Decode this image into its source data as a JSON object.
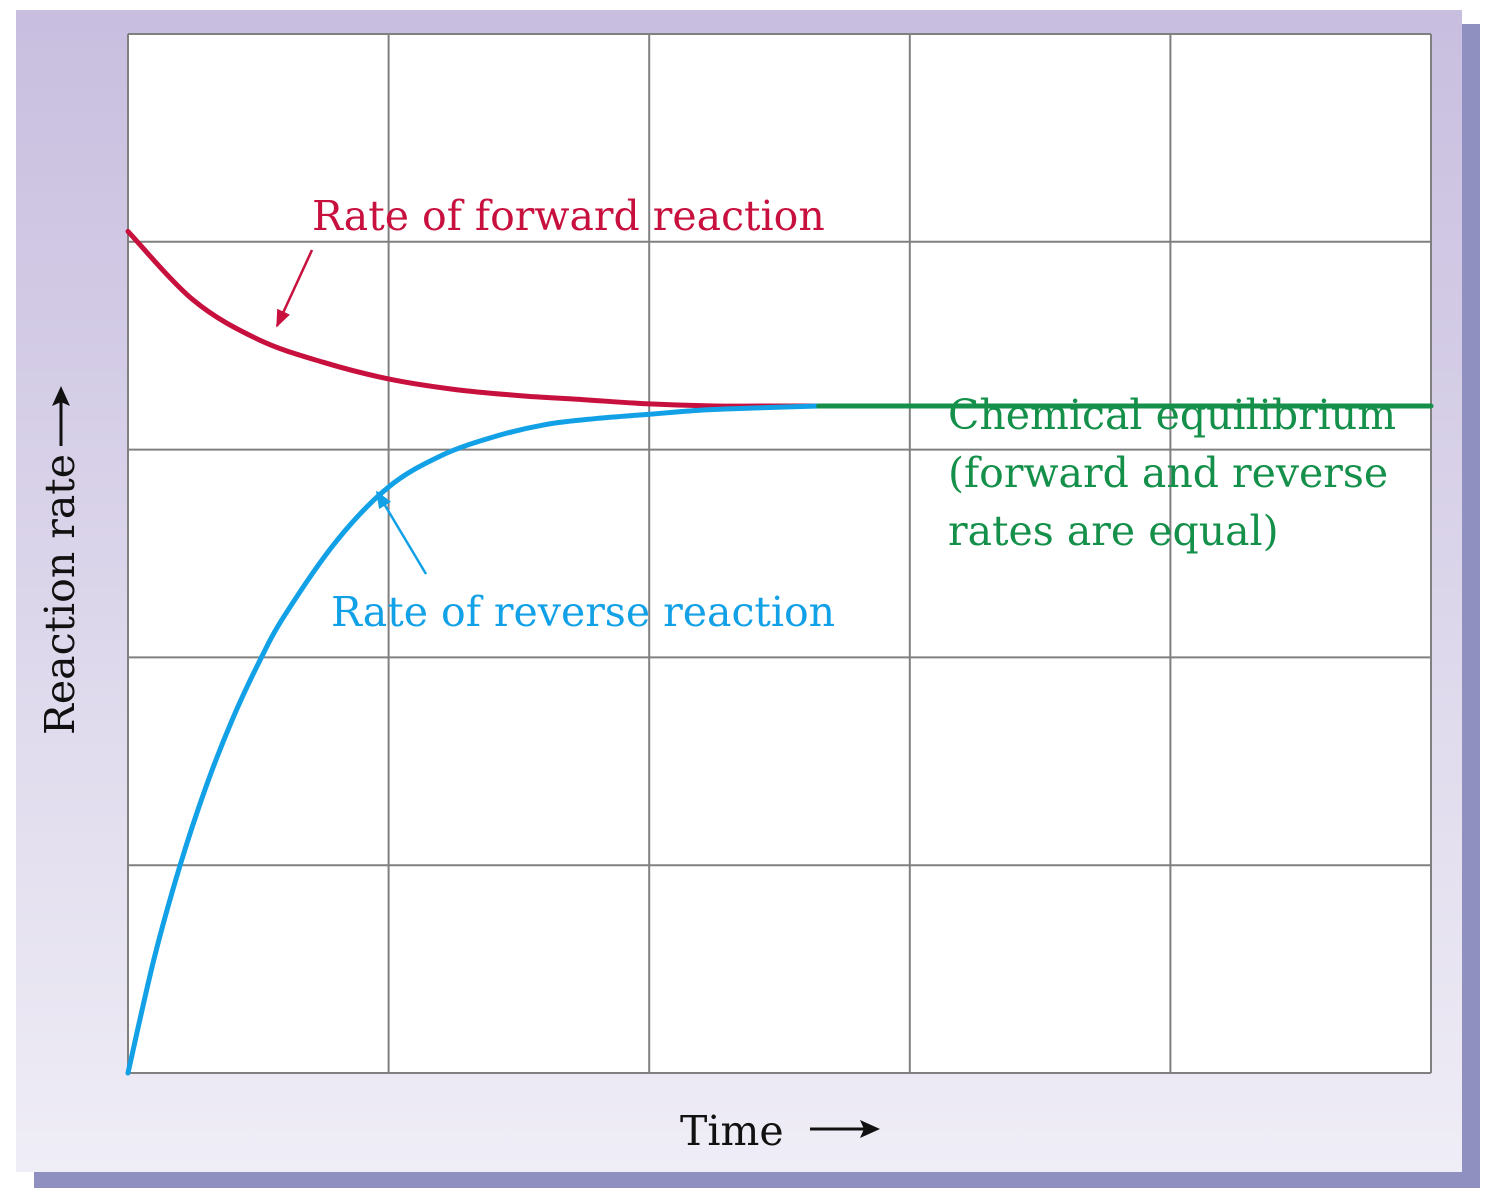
{
  "chart_data": {
    "type": "line",
    "title": "",
    "xlabel": "Time",
    "ylabel": "Reaction rate",
    "xlim": [
      0,
      5
    ],
    "ylim": [
      0,
      5
    ],
    "grid": true,
    "series": [
      {
        "name": "Rate of forward reaction",
        "color": "#c8103e",
        "x": [
          0,
          0.25,
          0.5,
          0.75,
          1.0,
          1.25,
          1.5,
          1.75,
          2.0,
          2.25,
          2.5,
          2.65
        ],
        "y": [
          4.05,
          3.72,
          3.53,
          3.42,
          3.34,
          3.29,
          3.26,
          3.24,
          3.22,
          3.21,
          3.21,
          3.21
        ]
      },
      {
        "name": "Rate of reverse reaction",
        "color": "#12a1e6",
        "x": [
          0,
          0.1,
          0.2,
          0.3,
          0.4,
          0.5,
          0.6,
          0.8,
          1.0,
          1.2,
          1.4,
          1.6,
          1.8,
          2.0,
          2.2,
          2.4,
          2.65
        ],
        "y": [
          0,
          0.55,
          1.0,
          1.38,
          1.7,
          1.97,
          2.2,
          2.56,
          2.82,
          2.97,
          3.06,
          3.12,
          3.15,
          3.17,
          3.19,
          3.2,
          3.21
        ]
      },
      {
        "name": "Chemical equilibrium",
        "color": "#14904a",
        "x": [
          2.65,
          5
        ],
        "y": [
          3.21,
          3.21
        ]
      }
    ],
    "annotations": {
      "forward": "Rate of forward reaction",
      "reverse": "Rate of reverse reaction",
      "equilibrium_lines": [
        "Chemical equilibrium",
        "(forward and reverse",
        "rates are equal)"
      ]
    },
    "colors": {
      "frame_top": "#c8bedf",
      "frame_bottom": "#efedf6",
      "shadow": "#9090c0",
      "grid": "#808080",
      "axis_text": "#111111"
    }
  }
}
